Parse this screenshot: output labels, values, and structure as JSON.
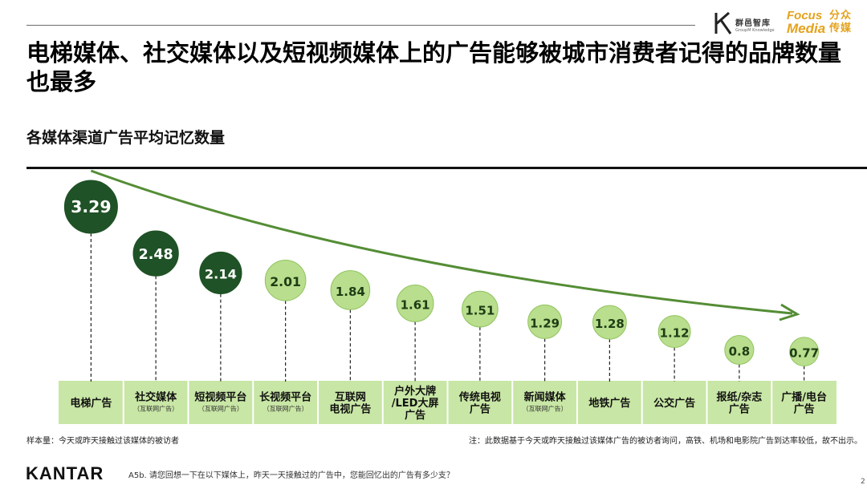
{
  "header": {
    "brand_qy_name": "群邑智库",
    "brand_qy_sub": "GroupM Knowledge",
    "brand_fm_w1": "Focus",
    "brand_fm_w2": "Media",
    "brand_fm_cn": "分众传媒"
  },
  "title": "电梯媒体、社交媒体以及短视频媒体上的广告能够被城市消费者记得的品牌数量也最多",
  "subtitle": "各媒体渠道广告平均记忆数量",
  "colors": {
    "dark_green": "#1f5226",
    "light_green": "#b9de8d",
    "label_bar": "#c8e6a5",
    "arrow": "#548d35"
  },
  "chart_data": {
    "type": "bar",
    "title": "各媒体渠道广告平均记忆数量",
    "categories": [
      {
        "label": "电梯广告",
        "sub": ""
      },
      {
        "label": "社交媒体",
        "sub": "（互联网广告）"
      },
      {
        "label": "短视频平台",
        "sub": "（互联网广告）"
      },
      {
        "label": "长视频平台",
        "sub": "（互联网广告）"
      },
      {
        "label": "互联网\n电视广告",
        "sub": ""
      },
      {
        "label": "户外大牌\n/LED大屏\n广告",
        "sub": ""
      },
      {
        "label": "传统电视\n广告",
        "sub": ""
      },
      {
        "label": "新闻媒体",
        "sub": "（互联网广告）"
      },
      {
        "label": "地铁广告",
        "sub": ""
      },
      {
        "label": "公交广告",
        "sub": ""
      },
      {
        "label": "报纸/杂志\n广告",
        "sub": ""
      },
      {
        "label": "广播/电台\n广告",
        "sub": ""
      }
    ],
    "values": [
      3.29,
      2.48,
      2.14,
      2.01,
      1.84,
      1.61,
      1.51,
      1.29,
      1.28,
      1.12,
      0.8,
      0.77
    ],
    "value_labels": [
      "3.29",
      "2.48",
      "2.14",
      "2.01",
      "1.84",
      "1.61",
      "1.51",
      "1.29",
      "1.28",
      "1.12",
      "0.8",
      "0.77"
    ],
    "highlight_count": 3,
    "ylim": [
      0.5,
      3.5
    ],
    "xlabel": "",
    "ylabel": ""
  },
  "footer": {
    "sample": "样本量：今天或昨天接触过该媒体的被访者",
    "note": "注：此数据基于今天或昨天接触过该媒体广告的被访者询问，高铁、机场和电影院广告到达率较低，故不出示。",
    "brand": "KANTAR",
    "question": "A5b. 请您回想一下在以下媒体上，昨天一天接触过的广告中，您能回忆出的广告有多少支？",
    "page": "2"
  }
}
